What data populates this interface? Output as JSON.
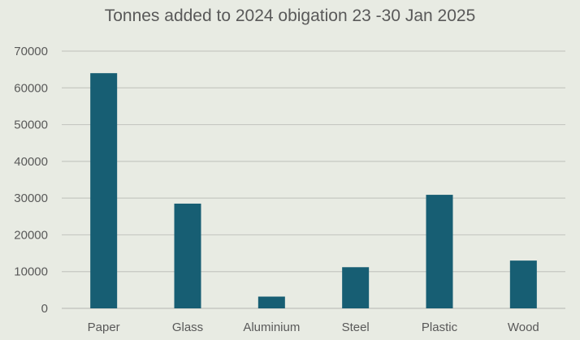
{
  "chart_data": {
    "type": "bar",
    "title": "Tonnes added to 2024 obigation 23 -30 Jan 2025",
    "xlabel": "",
    "ylabel": "",
    "categories": [
      "Paper",
      "Glass",
      "Aluminium",
      "Steel",
      "Plastic",
      "Wood"
    ],
    "values": [
      64000,
      28500,
      3200,
      11200,
      30900,
      13000
    ],
    "ylim": [
      0,
      70000
    ],
    "yticks": [
      0,
      10000,
      20000,
      30000,
      40000,
      50000,
      60000,
      70000
    ],
    "grid": true,
    "legend": "none",
    "colors": {
      "bar": "#175e73",
      "grid": "#c6c8c2",
      "text": "#595959",
      "background": "#e8ebe3"
    }
  }
}
